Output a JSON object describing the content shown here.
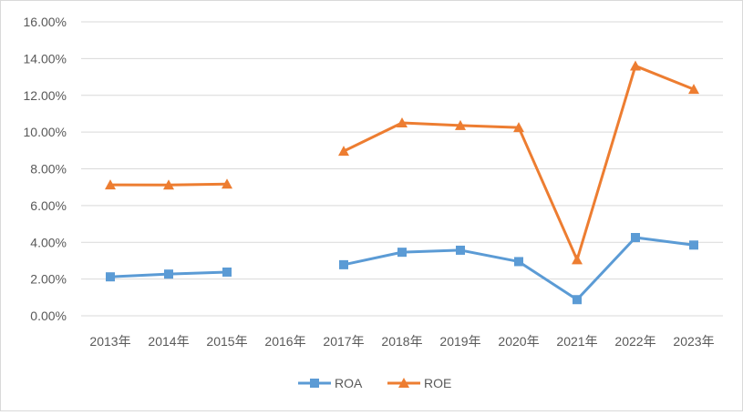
{
  "chart_data": {
    "type": "line",
    "categories": [
      "2013年",
      "2014年",
      "2015年",
      "2016年",
      "2017年",
      "2018年",
      "2019年",
      "2020年",
      "2021年",
      "2022年",
      "2023年"
    ],
    "series": [
      {
        "name": "ROA",
        "color": "#5b9bd5",
        "marker": "square",
        "values": [
          2.12,
          2.27,
          2.38,
          null,
          2.78,
          3.46,
          3.57,
          2.95,
          0.88,
          4.26,
          3.85
        ]
      },
      {
        "name": "ROE",
        "color": "#ed7d31",
        "marker": "triangle",
        "values": [
          7.13,
          7.12,
          7.17,
          null,
          8.96,
          10.5,
          10.36,
          10.25,
          3.05,
          13.6,
          12.33
        ]
      }
    ],
    "ylim": [
      0,
      16
    ],
    "yticks": [
      0,
      2,
      4,
      6,
      8,
      10,
      12,
      14,
      16
    ],
    "ytick_labels": [
      "0.00%",
      "2.00%",
      "4.00%",
      "6.00%",
      "8.00%",
      "10.00%",
      "12.00%",
      "14.00%",
      "16.00%"
    ],
    "grid": true,
    "legend_position": "bottom",
    "gridline_color": "#d9d9d9",
    "text_color": "#595959"
  }
}
